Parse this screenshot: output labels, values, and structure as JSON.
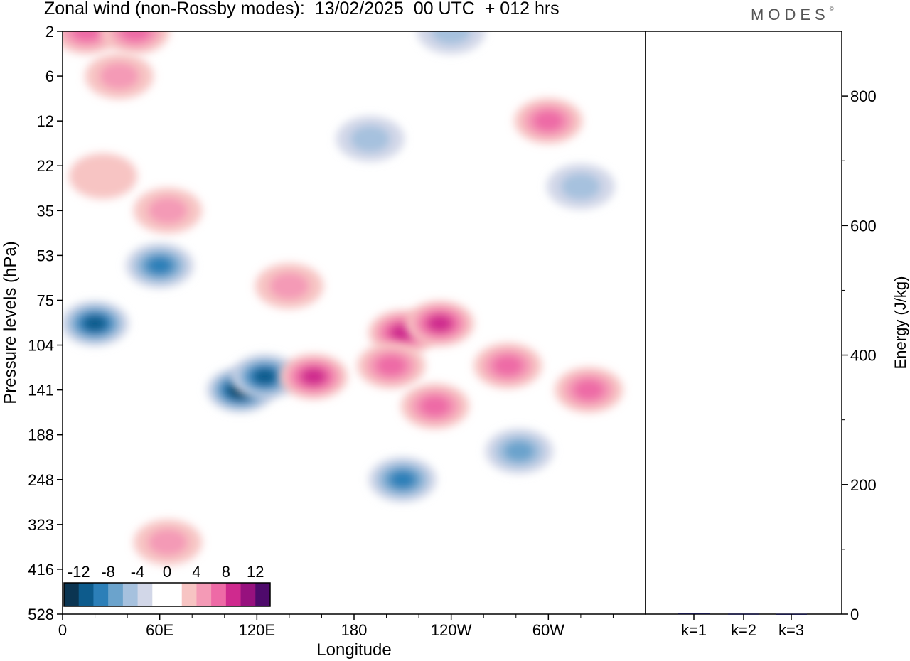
{
  "header": {
    "title": "Zonal wind (non-Rossby modes):  13/02/2025  00 UTC  + 012 hrs",
    "logo": "MODES",
    "logo_mark": "©"
  },
  "chart_data": [
    {
      "type": "heatmap",
      "title": "Zonal wind (non-Rossby modes):  13/02/2025  00 UTC  + 012 hrs",
      "xlabel": "Longitude",
      "ylabel": "Pressure levels (hPa)",
      "x_ticks": [
        "0",
        "60E",
        "120E",
        "180",
        "120W",
        "60W"
      ],
      "x_tick_degrees": [
        0,
        60,
        120,
        180,
        240,
        300
      ],
      "xlim_degrees": [
        0,
        360
      ],
      "y_ticks": [
        "2",
        "6",
        "12",
        "22",
        "35",
        "53",
        "75",
        "104",
        "141",
        "188",
        "248",
        "323",
        "416",
        "528"
      ],
      "y_axis_order": "top-to-bottom",
      "colorbar": {
        "ticks": [
          "-12",
          "-8",
          "-4",
          "0",
          "4",
          "8",
          "12"
        ],
        "levels": [
          -14,
          -12,
          -10,
          -8,
          -6,
          -4,
          -2,
          0,
          2,
          4,
          6,
          8,
          10,
          12,
          14
        ],
        "colors": [
          "#0b3552",
          "#0d5b8c",
          "#2c7fb8",
          "#6ba3cc",
          "#a6c1de",
          "#d2d7e8",
          "#ffffff",
          "#ffffff",
          "#f7c4c3",
          "#f49ab6",
          "#ee6aa6",
          "#cf2a8e",
          "#97117e",
          "#4e0a6b"
        ]
      },
      "features": [
        {
          "lon": 15,
          "level": 2,
          "value": 6
        },
        {
          "lon": 45,
          "level": 2,
          "value": 7
        },
        {
          "lon": 35,
          "level": 6,
          "value": 5
        },
        {
          "lon": 25,
          "level": 25,
          "value": 3
        },
        {
          "lon": 65,
          "level": 35,
          "value": 4
        },
        {
          "lon": 240,
          "level": 2,
          "value": -4
        },
        {
          "lon": 190,
          "level": 16,
          "value": -5
        },
        {
          "lon": 300,
          "level": 12,
          "value": 6
        },
        {
          "lon": 320,
          "level": 28,
          "value": -4
        },
        {
          "lon": 20,
          "level": 90,
          "value": -10
        },
        {
          "lon": 60,
          "level": 58,
          "value": -9
        },
        {
          "lon": 110,
          "level": 141,
          "value": -13
        },
        {
          "lon": 125,
          "level": 130,
          "value": -10
        },
        {
          "lon": 140,
          "level": 68,
          "value": 5
        },
        {
          "lon": 155,
          "level": 130,
          "value": 8
        },
        {
          "lon": 210,
          "level": 96,
          "value": 9
        },
        {
          "lon": 233,
          "level": 90,
          "value": 9
        },
        {
          "lon": 203,
          "level": 121,
          "value": 7
        },
        {
          "lon": 275,
          "level": 121,
          "value": 7
        },
        {
          "lon": 230,
          "level": 158,
          "value": 6
        },
        {
          "lon": 210,
          "level": 248,
          "value": -9
        },
        {
          "lon": 282,
          "level": 210,
          "value": -7
        },
        {
          "lon": 65,
          "level": 360,
          "value": 5
        },
        {
          "lon": 325,
          "level": 141,
          "value": 6
        }
      ]
    },
    {
      "type": "bar",
      "categories": [
        "k=1",
        "k=2",
        "k=3"
      ],
      "values": [
        1.5,
        0.8,
        0.6
      ],
      "ylabel": "Energy (J/kg)",
      "ylim": [
        0,
        900
      ],
      "y_ticks": [
        0,
        200,
        400,
        600,
        800
      ],
      "bar_color": "#1a1a4a"
    }
  ]
}
